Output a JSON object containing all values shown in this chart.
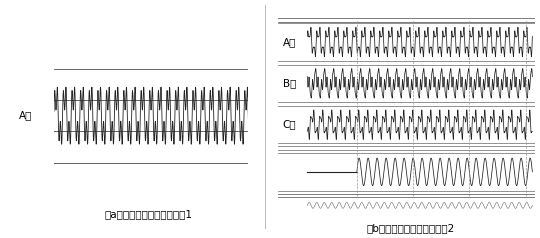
{
  "title_a": "（a）鉄共振時の電圧波形例1",
  "title_b": "（b）鉄共振時の電圧波形例2",
  "label_A": "A相",
  "label_B": "B相",
  "label_C": "C相",
  "line_color": "#222222",
  "border_color": "#666666",
  "divider_color": "#999999",
  "font_size_label": 7.5,
  "font_size_caption": 7.5
}
